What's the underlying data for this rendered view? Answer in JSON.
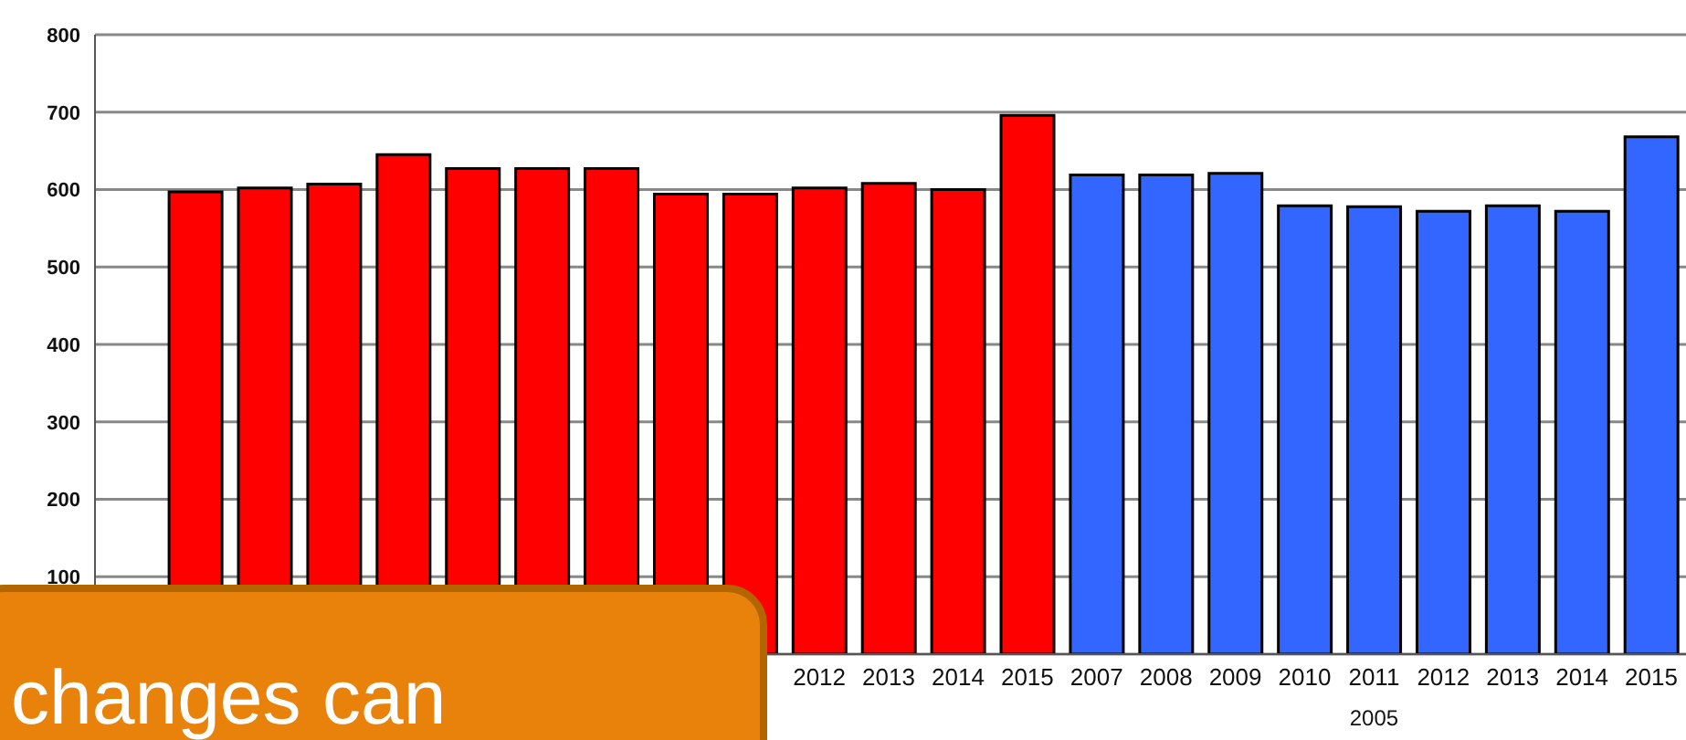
{
  "chart_data": {
    "type": "bar",
    "categories": [
      null,
      null,
      null,
      null,
      null,
      null,
      null,
      null,
      null,
      "2012",
      "2013",
      "2014",
      "2015",
      "2007",
      "2008",
      "2009",
      "2010",
      "2011",
      "2012",
      "2013",
      "2014",
      "2015"
    ],
    "values": [
      597,
      602,
      607,
      645,
      627,
      627,
      627,
      594,
      594,
      602,
      608,
      600,
      696,
      619,
      619,
      621,
      579,
      578,
      572,
      579,
      572,
      668
    ],
    "colors": [
      "#ff0000",
      "#ff0000",
      "#ff0000",
      "#ff0000",
      "#ff0000",
      "#ff0000",
      "#ff0000",
      "#ff0000",
      "#ff0000",
      "#ff0000",
      "#ff0000",
      "#ff0000",
      "#ff0000",
      "#3366ff",
      "#3366ff",
      "#3366ff",
      "#3366ff",
      "#3366ff",
      "#3366ff",
      "#3366ff",
      "#3366ff",
      "#3366ff"
    ],
    "ylim": [
      0,
      800
    ],
    "yticks": [
      100,
      200,
      300,
      400,
      500,
      600,
      700,
      800
    ],
    "grid": "y",
    "annotations": [
      "2005",
      "changes can"
    ]
  }
}
